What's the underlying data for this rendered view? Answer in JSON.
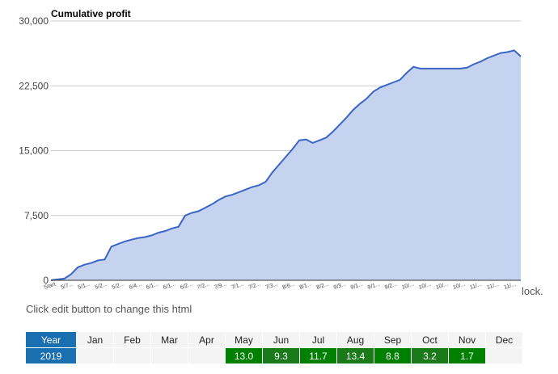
{
  "chart_data": {
    "type": "area",
    "title": "Cumulative profit",
    "xlabel": "",
    "ylabel": "",
    "ylim": [
      0,
      30000
    ],
    "yticks": [
      "0",
      "7,500",
      "15,000",
      "22,500",
      "30,000"
    ],
    "ytick_values": [
      0,
      7500,
      15000,
      22500,
      30000
    ],
    "xtick_labels": [
      "Start",
      "5/7...",
      "5/1...",
      "5/2...",
      "5/2...",
      "6/4...",
      "6/1...",
      "6/1...",
      "6/2...",
      "7/2...",
      "7/9...",
      "7/1...",
      "7/2...",
      "7/3...",
      "8/6...",
      "8/1...",
      "8/2...",
      "9/3...",
      "9/1...",
      "9/1...",
      "9/2...",
      "10/...",
      "10/...",
      "10/...",
      "10/...",
      "11/...",
      "11/...",
      "11/..."
    ],
    "grid": true,
    "legend": "none",
    "colors": {
      "line": "#3a66c4",
      "fill": "#c5d2f0",
      "grid": "#cccccc"
    },
    "series": [
      {
        "values": [
          0,
          100,
          200,
          700,
          1500,
          1800,
          2000,
          2300,
          2400,
          3900,
          4200,
          4500,
          4700,
          4900,
          5000,
          5200,
          5500,
          5700,
          6000,
          6200,
          7500,
          7800,
          8000,
          8400,
          8800,
          9300,
          9700,
          9900,
          10200,
          10500,
          10800,
          11000,
          11400,
          12500,
          13400,
          14300,
          15200,
          16200,
          16300,
          15900,
          16200,
          16500,
          17200,
          18000,
          18800,
          19700,
          20400,
          21000,
          21800,
          22300,
          22600,
          22900,
          23200,
          24000,
          24700,
          24500,
          24500,
          24500,
          24500,
          24500,
          24500,
          24500,
          24600,
          25000,
          25300,
          25700,
          26000,
          26300,
          26400,
          26600,
          25900
        ]
      }
    ]
  },
  "trailing_text": "lock.",
  "edit_hint": "Click edit button to change this html",
  "table": {
    "header_label": "Year",
    "months": [
      "Jan",
      "Feb",
      "Mar",
      "Apr",
      "May",
      "Jun",
      "Jul",
      "Aug",
      "Sep",
      "Oct",
      "Nov",
      "Dec"
    ],
    "rows": [
      {
        "year": "2019",
        "values": [
          "",
          "",
          "",
          "",
          "13.0",
          "9.3",
          "11.7",
          "13.4",
          "8.8",
          "3.2",
          "1.7",
          ""
        ]
      }
    ],
    "colors": {
      "header": "#1a6fb0",
      "positive": "#008000",
      "positive_alt": "#1a7a1a",
      "empty": "#f4f4f4"
    }
  }
}
